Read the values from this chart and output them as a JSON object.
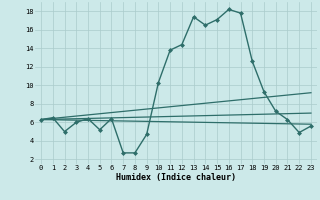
{
  "xlabel": "Humidex (Indice chaleur)",
  "xlim": [
    -0.5,
    23.5
  ],
  "ylim": [
    1.5,
    19
  ],
  "yticks": [
    2,
    4,
    6,
    8,
    10,
    12,
    14,
    16,
    18
  ],
  "xticks": [
    0,
    1,
    2,
    3,
    4,
    5,
    6,
    7,
    8,
    9,
    10,
    11,
    12,
    13,
    14,
    15,
    16,
    17,
    18,
    19,
    20,
    21,
    22,
    23
  ],
  "bg_color": "#cce9e9",
  "grid_color": "#aacccc",
  "line_color": "#2e6e6a",
  "lines": [
    {
      "x": [
        0,
        1,
        2,
        3,
        4,
        5,
        6,
        7,
        8,
        9,
        10,
        11,
        12,
        13,
        14,
        15,
        16,
        17,
        18,
        19,
        20,
        21,
        22,
        23
      ],
      "y": [
        6.3,
        6.5,
        5.0,
        6.0,
        6.4,
        5.2,
        6.4,
        2.7,
        2.7,
        4.7,
        10.3,
        13.8,
        14.4,
        17.4,
        16.5,
        17.1,
        18.2,
        17.8,
        12.6,
        9.3,
        7.2,
        6.3,
        4.9,
        5.6
      ],
      "marker": "D",
      "markersize": 2.0,
      "linewidth": 1.0
    },
    {
      "x": [
        0,
        23
      ],
      "y": [
        6.3,
        9.2
      ],
      "marker": null,
      "linewidth": 0.9
    },
    {
      "x": [
        0,
        23
      ],
      "y": [
        6.3,
        7.0
      ],
      "marker": null,
      "linewidth": 0.9
    },
    {
      "x": [
        0,
        23
      ],
      "y": [
        6.3,
        5.8
      ],
      "marker": null,
      "linewidth": 0.9
    }
  ]
}
